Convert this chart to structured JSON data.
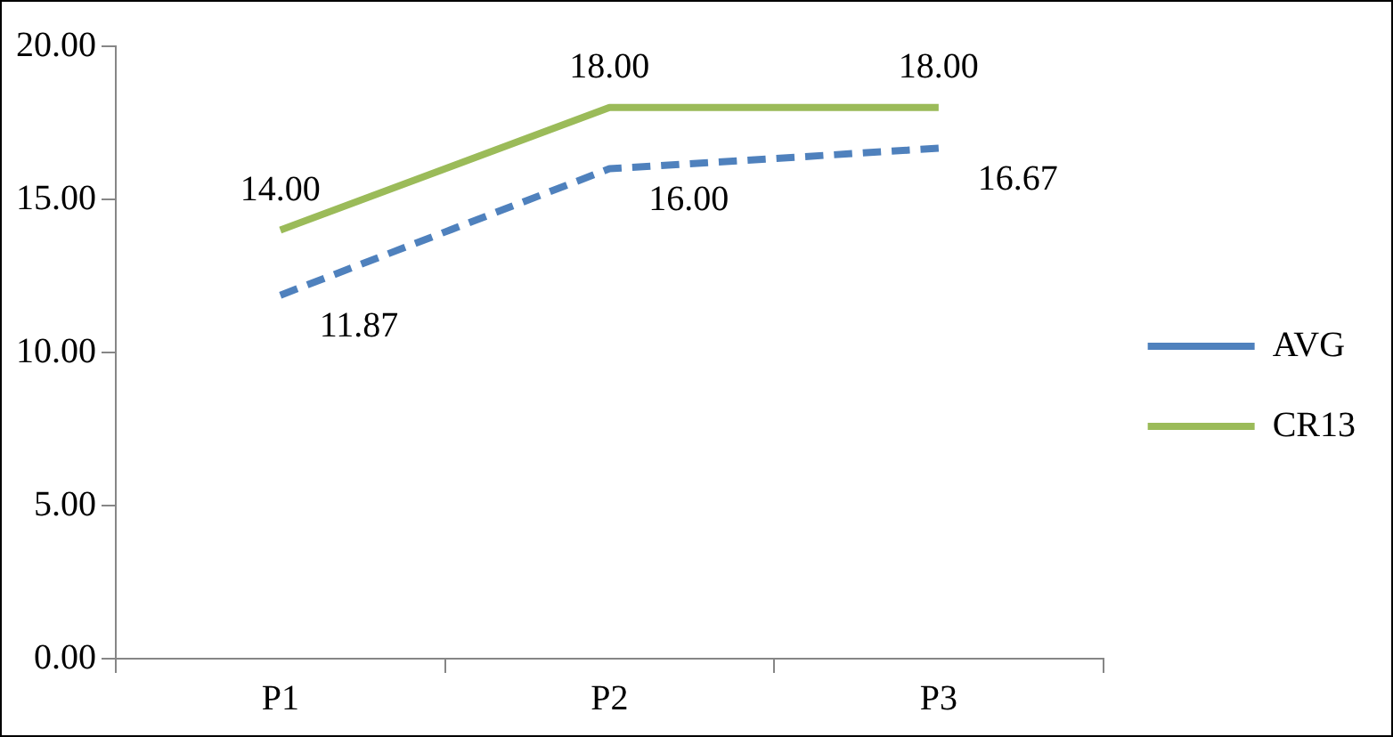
{
  "chart_data": {
    "type": "line",
    "categories": [
      "P1",
      "P2",
      "P3"
    ],
    "series": [
      {
        "name": "AVG",
        "color": "#4f81bd",
        "values": [
          11.87,
          16,
          16.67
        ],
        "line_style": "dashed",
        "value_labels": [
          "11.87",
          "16.00",
          "16.67"
        ]
      },
      {
        "name": "CR13",
        "color": "#9bbb59",
        "values": [
          14,
          18,
          18
        ],
        "line_style": "solid",
        "value_labels": [
          "14.00",
          "18.00",
          "18.00"
        ]
      }
    ],
    "ylim": [
      0,
      20
    ],
    "yticks": [
      {
        "value": 0,
        "label": "0.00"
      },
      {
        "value": 5,
        "label": "5.00"
      },
      {
        "value": 10,
        "label": "10.00"
      },
      {
        "value": 15,
        "label": "15.00"
      },
      {
        "value": 20,
        "label": "20.00"
      }
    ],
    "grid": false,
    "legend": "right",
    "marker": "none"
  }
}
